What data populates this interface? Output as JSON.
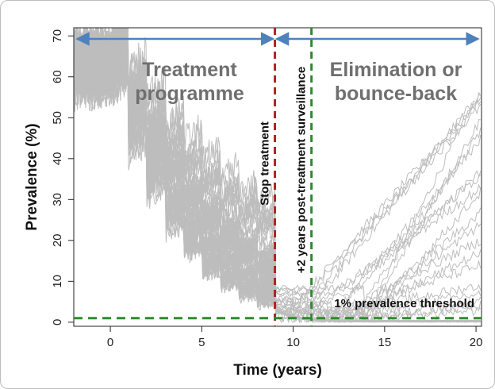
{
  "chart_data": {
    "type": "line",
    "title": "",
    "xlabel": "Time (years)",
    "ylabel": "Prevalence (%)",
    "xlim": [
      -2,
      20.3
    ],
    "ylim": [
      -1,
      72
    ],
    "xticks": [
      0,
      5,
      10,
      15,
      20
    ],
    "yticks": [
      0,
      10,
      20,
      30,
      40,
      50,
      60,
      70
    ],
    "grid": false,
    "series_color": "#bdbdbd",
    "annotations": {
      "region_treatment": [
        "Treatment",
        "programme"
      ],
      "region_elimination": [
        "Elimination or",
        "bounce-back"
      ],
      "stop_treatment": {
        "label": "Stop treatment",
        "x": 9,
        "color": "#b22222"
      },
      "surveillance": {
        "label": "+2 years post-treatment surveillance",
        "x": 11,
        "color": "#2e8b2e"
      },
      "threshold": {
        "label": "1% prevalence threshold",
        "y": 1,
        "color": "#2e8b2e"
      },
      "arrow_color": "#4f81bd"
    },
    "simulation": {
      "description_series_count": 60,
      "treatment_years": [
        0,
        1,
        2,
        3,
        4,
        5,
        6,
        7,
        8
      ],
      "start_level_range": [
        56,
        68
      ],
      "bounce_back_end_levels": [
        57,
        56,
        55,
        55,
        53,
        50,
        47,
        45,
        37,
        36,
        33,
        32,
        27,
        24,
        20,
        17,
        14,
        9,
        7,
        5,
        4,
        3
      ]
    }
  }
}
